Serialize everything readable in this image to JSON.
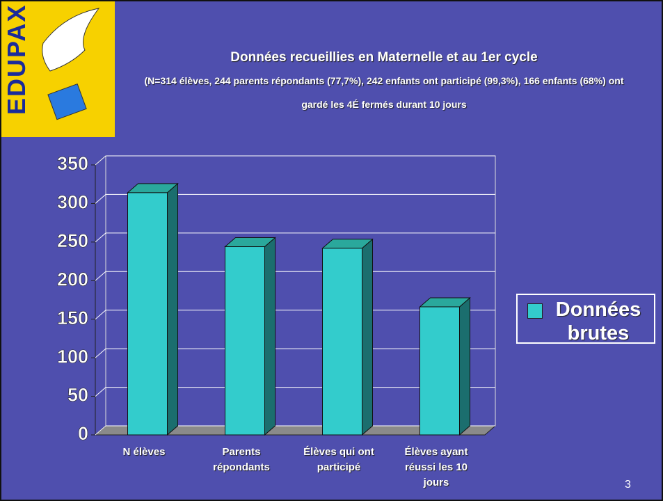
{
  "logo": "EDUPAX",
  "page_number": "3",
  "chart_data": {
    "type": "bar3d",
    "title": "Données recueillies en Maternelle et au 1er cycle",
    "subtitle": "(N=314 élèves, 244 parents répondants (77,7%), 242 enfants ont participé (99,3%), 166 enfants (68%) ont gardé les 4É fermés durant 10 jours",
    "categories": [
      "N élèves",
      "Parents répondants",
      "Élèves qui ont participé",
      "Élèves ayant réussi les 10 jours"
    ],
    "series": [
      {
        "name": "Données brutes",
        "color": "#33cccc",
        "values": [
          314,
          244,
          242,
          166
        ]
      }
    ],
    "ylim": [
      0,
      350
    ],
    "yticks": [
      0,
      50,
      100,
      150,
      200,
      250,
      300,
      350
    ],
    "grid": true,
    "legend": "right"
  }
}
